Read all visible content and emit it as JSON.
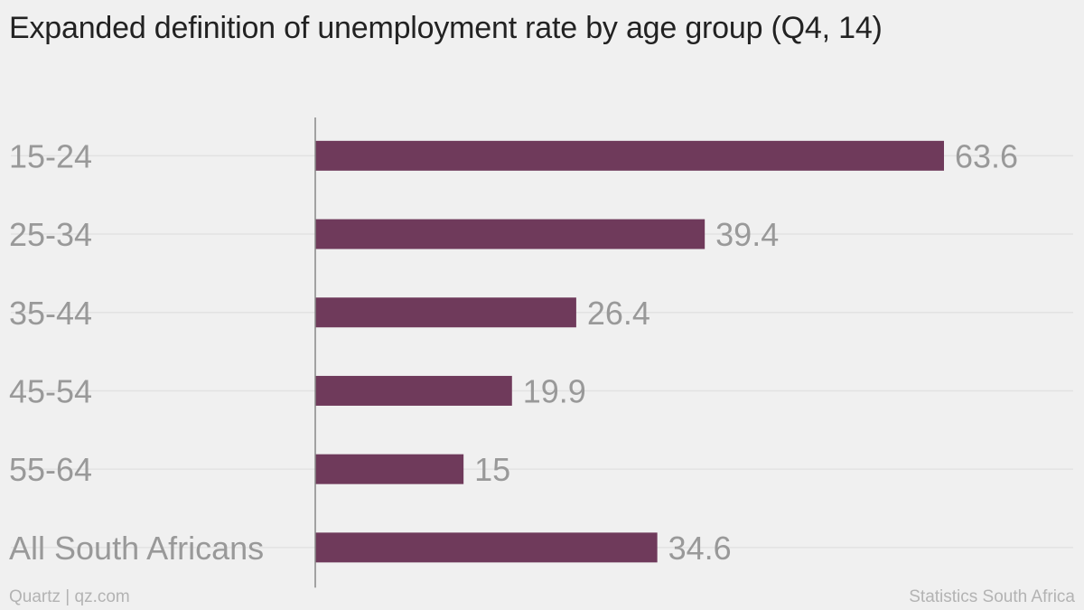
{
  "title": "Expanded definition of unemployment rate by age group (Q4, 14)",
  "footer": {
    "source_left": "Quartz | qz.com",
    "source_right": "Statistics South Africa"
  },
  "chart_data": {
    "type": "bar",
    "orientation": "horizontal",
    "title": "Expanded definition of unemployment rate by age group (Q4, 14)",
    "categories": [
      "15-24",
      "25-34",
      "35-44",
      "45-54",
      "55-64",
      "All South Africans"
    ],
    "values": [
      63.6,
      39.4,
      26.4,
      19.9,
      15,
      34.6
    ],
    "value_labels": [
      "63.6",
      "39.4",
      "26.4",
      "19.9",
      "15",
      "34.6"
    ],
    "xlim": [
      0,
      63.6
    ],
    "xlabel": "",
    "ylabel": "",
    "grid": true,
    "colors": {
      "bar": "#6f3a5b",
      "label": "#999999",
      "grid": "#e2e2e2",
      "axis": "#888888",
      "background": "#f0f0f0"
    }
  }
}
